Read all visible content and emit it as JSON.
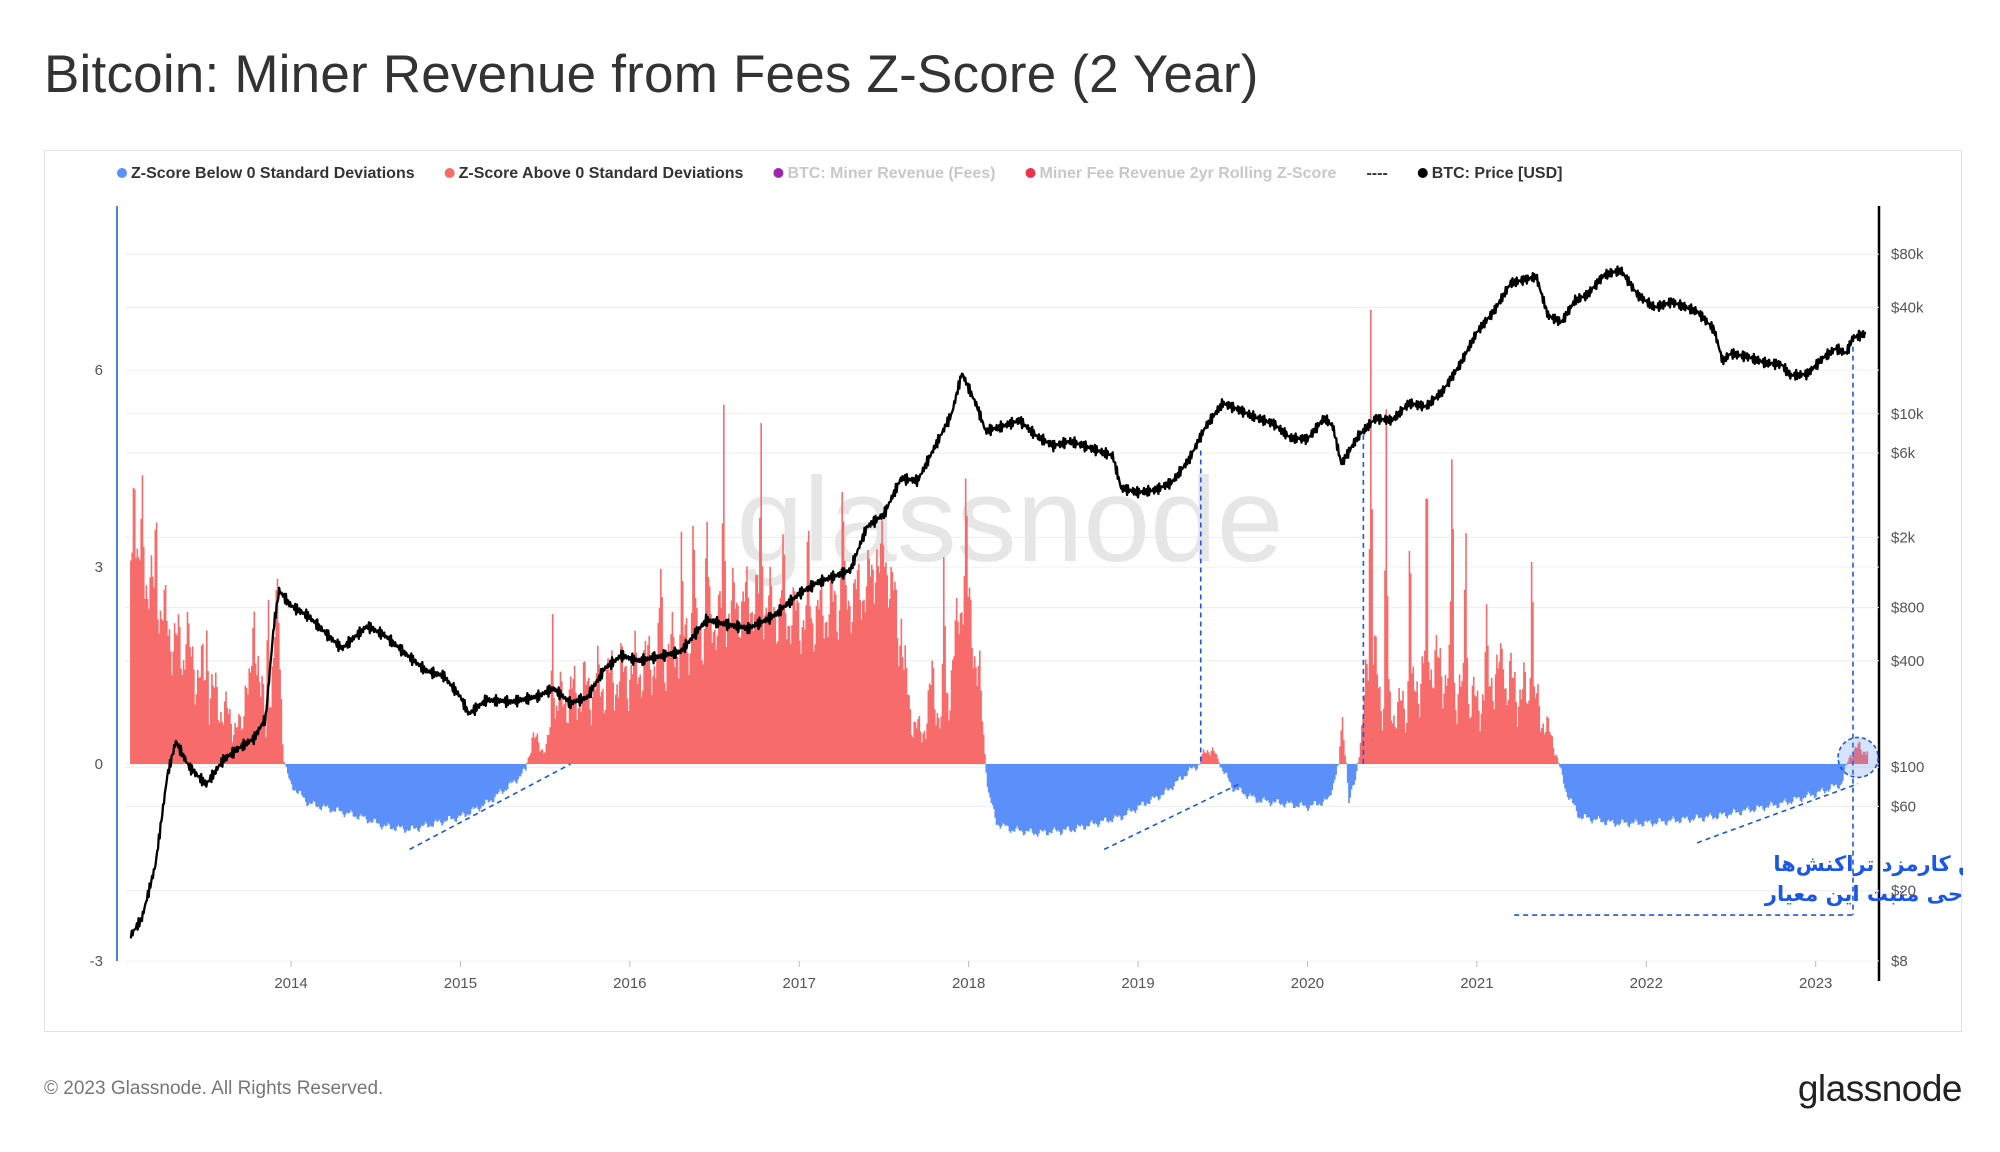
{
  "title": "Bitcoin: Miner Revenue from Fees Z-Score (2 Year)",
  "footer": {
    "copyright": "© 2023 Glassnode. All Rights Reserved.",
    "logo": "glassnode"
  },
  "watermark": "glassnode",
  "colors": {
    "below": "#5b8ff9",
    "above": "#f86b6b",
    "price": "#000000",
    "annotation": "#1a56e8"
  },
  "legend": [
    {
      "label": "Z-Score Below 0 Standard Deviations",
      "color": "#5b8ff9",
      "active": true,
      "marker": "dot"
    },
    {
      "label": "Z-Score Above 0 Standard Deviations",
      "color": "#f86b6b",
      "active": true,
      "marker": "dot"
    },
    {
      "label": "BTC: Miner Revenue (Fees)",
      "color": "#9b27af",
      "active": false,
      "marker": "dot"
    },
    {
      "label": "Miner Fee Revenue 2yr Rolling Z-Score",
      "color": "#f0304f",
      "active": false,
      "marker": "dot"
    },
    {
      "label": "----",
      "color": "#333333",
      "active": true,
      "marker": "none"
    },
    {
      "label": "BTC: Price [USD]",
      "color": "#000000",
      "active": true,
      "marker": "dot"
    }
  ],
  "annotation": {
    "line1": "بالا رفتن کارمزد تراکنش‌ها",
    "line2": "در نواحی مثبت این معیار"
  },
  "chart_data": {
    "type": "area",
    "x_range": [
      2013.02,
      2023.35
    ],
    "x_ticks": [
      "2014",
      "2015",
      "2016",
      "2017",
      "2018",
      "2019",
      "2020",
      "2021",
      "2022",
      "2023"
    ],
    "y_left": {
      "range": [
        -3,
        8.5
      ],
      "ticks": [
        -3,
        0,
        3,
        6
      ],
      "tick_labels": [
        "-3",
        "0",
        "3",
        "6"
      ]
    },
    "y_right": {
      "scale": "log",
      "range": [
        8,
        150000
      ],
      "ticks": [
        8,
        20,
        60,
        100,
        400,
        800,
        2000,
        6000,
        10000,
        40000,
        80000
      ],
      "tick_labels": [
        "$8",
        "$20",
        "$60",
        "$100",
        "$400",
        "$800",
        "$2k",
        "$6k",
        "$10k",
        "$40k",
        "$80k"
      ]
    },
    "zscore": [
      [
        2013.05,
        3.2
      ],
      [
        2013.15,
        2.8
      ],
      [
        2013.3,
        1.9
      ],
      [
        2013.45,
        1.4
      ],
      [
        2013.6,
        0.8
      ],
      [
        2013.7,
        0.5
      ],
      [
        2013.8,
        1.8
      ],
      [
        2013.85,
        0.3
      ],
      [
        2013.92,
        2.5
      ],
      [
        2013.95,
        0.1
      ],
      [
        2013.99,
        -0.3
      ],
      [
        2014.1,
        -0.6
      ],
      [
        2014.25,
        -0.7
      ],
      [
        2014.4,
        -0.8
      ],
      [
        2014.55,
        -0.95
      ],
      [
        2014.7,
        -1.0
      ],
      [
        2014.85,
        -0.9
      ],
      [
        2015.0,
        -0.8
      ],
      [
        2015.15,
        -0.6
      ],
      [
        2015.3,
        -0.3
      ],
      [
        2015.38,
        -0.1
      ],
      [
        2015.42,
        0.4
      ],
      [
        2015.5,
        0.2
      ],
      [
        2015.55,
        0.8
      ],
      [
        2015.6,
        1.0
      ],
      [
        2015.7,
        1.1
      ],
      [
        2015.8,
        1.2
      ],
      [
        2015.9,
        1.3
      ],
      [
        2016.0,
        1.4
      ],
      [
        2016.15,
        1.6
      ],
      [
        2016.3,
        1.8
      ],
      [
        2016.45,
        2.1
      ],
      [
        2016.6,
        2.4
      ],
      [
        2016.75,
        2.5
      ],
      [
        2016.9,
        2.3
      ],
      [
        2017.05,
        2.2
      ],
      [
        2017.2,
        2.4
      ],
      [
        2017.35,
        2.6
      ],
      [
        2017.45,
        2.9
      ],
      [
        2017.5,
        3.2
      ],
      [
        2017.55,
        2.6
      ],
      [
        2017.6,
        1.6
      ],
      [
        2017.65,
        0.8
      ],
      [
        2017.72,
        0.4
      ],
      [
        2017.78,
        1.2
      ],
      [
        2017.84,
        0.6
      ],
      [
        2017.9,
        1.5
      ],
      [
        2017.97,
        2.8
      ],
      [
        2018.02,
        2.0
      ],
      [
        2018.06,
        1.2
      ],
      [
        2018.09,
        0.2
      ],
      [
        2018.11,
        -0.4
      ],
      [
        2018.16,
        -0.9
      ],
      [
        2018.25,
        -1.0
      ],
      [
        2018.4,
        -1.05
      ],
      [
        2018.6,
        -1.0
      ],
      [
        2018.75,
        -0.9
      ],
      [
        2018.9,
        -0.8
      ],
      [
        2019.0,
        -0.65
      ],
      [
        2019.15,
        -0.45
      ],
      [
        2019.3,
        -0.1
      ],
      [
        2019.36,
        0.0
      ],
      [
        2019.38,
        0.15
      ],
      [
        2019.42,
        0.25
      ],
      [
        2019.45,
        0.15
      ],
      [
        2019.48,
        0.0
      ],
      [
        2019.55,
        -0.35
      ],
      [
        2019.7,
        -0.55
      ],
      [
        2019.85,
        -0.6
      ],
      [
        2020.0,
        -0.65
      ],
      [
        2020.12,
        -0.55
      ],
      [
        2020.18,
        0.0
      ],
      [
        2020.2,
        0.7
      ],
      [
        2020.22,
        0.2
      ],
      [
        2020.24,
        -0.6
      ],
      [
        2020.28,
        -0.2
      ],
      [
        2020.32,
        0.5
      ],
      [
        2020.36,
        2.0
      ],
      [
        2020.42,
        1.1
      ],
      [
        2020.5,
        0.8
      ],
      [
        2020.6,
        0.9
      ],
      [
        2020.7,
        1.6
      ],
      [
        2020.8,
        1.4
      ],
      [
        2020.9,
        1.1
      ],
      [
        2021.0,
        0.9
      ],
      [
        2021.1,
        1.4
      ],
      [
        2021.2,
        1.2
      ],
      [
        2021.3,
        1.0
      ],
      [
        2021.35,
        0.9
      ],
      [
        2021.4,
        0.6
      ],
      [
        2021.45,
        0.3
      ],
      [
        2021.48,
        0.0
      ],
      [
        2021.52,
        -0.4
      ],
      [
        2021.6,
        -0.8
      ],
      [
        2021.8,
        -0.9
      ],
      [
        2022.0,
        -0.9
      ],
      [
        2022.2,
        -0.85
      ],
      [
        2022.4,
        -0.8
      ],
      [
        2022.6,
        -0.7
      ],
      [
        2022.8,
        -0.6
      ],
      [
        2023.0,
        -0.45
      ],
      [
        2023.15,
        -0.3
      ],
      [
        2023.18,
        0.0
      ],
      [
        2023.2,
        0.15
      ],
      [
        2023.25,
        0.25
      ],
      [
        2023.3,
        0.2
      ]
    ],
    "spikes": [
      [
        2013.07,
        5.3
      ],
      [
        2013.12,
        4.2
      ],
      [
        2013.2,
        3.9
      ],
      [
        2013.38,
        2.4
      ],
      [
        2013.5,
        2.2
      ],
      [
        2013.73,
        1.8
      ],
      [
        2013.78,
        2.2
      ],
      [
        2013.86,
        3.0
      ],
      [
        2015.54,
        2.5
      ],
      [
        2016.18,
        3.2
      ],
      [
        2016.3,
        3.3
      ],
      [
        2016.37,
        4.3
      ],
      [
        2016.45,
        3.9
      ],
      [
        2016.55,
        5.2
      ],
      [
        2016.77,
        5.0
      ],
      [
        2016.9,
        3.2
      ],
      [
        2017.05,
        3.4
      ],
      [
        2017.25,
        4.5
      ],
      [
        2017.45,
        3.5
      ],
      [
        2017.6,
        2.5
      ],
      [
        2017.85,
        3.3
      ],
      [
        2017.98,
        4.3
      ],
      [
        2020.37,
        7.3
      ],
      [
        2020.46,
        5.5
      ],
      [
        2020.6,
        4.2
      ],
      [
        2020.7,
        4.6
      ],
      [
        2020.85,
        5.5
      ],
      [
        2020.93,
        4.1
      ],
      [
        2021.05,
        2.1
      ],
      [
        2021.15,
        1.9
      ],
      [
        2021.32,
        3.9
      ]
    ],
    "price": [
      [
        2013.05,
        11
      ],
      [
        2013.12,
        14
      ],
      [
        2013.2,
        28
      ],
      [
        2013.27,
        90
      ],
      [
        2013.32,
        140
      ],
      [
        2013.4,
        100
      ],
      [
        2013.5,
        80
      ],
      [
        2013.6,
        110
      ],
      [
        2013.7,
        130
      ],
      [
        2013.78,
        145
      ],
      [
        2013.85,
        190
      ],
      [
        2013.9,
        650
      ],
      [
        2013.93,
        1000
      ],
      [
        2014.0,
        820
      ],
      [
        2014.1,
        720
      ],
      [
        2014.2,
        580
      ],
      [
        2014.3,
        470
      ],
      [
        2014.45,
        630
      ],
      [
        2014.55,
        560
      ],
      [
        2014.7,
        420
      ],
      [
        2014.8,
        350
      ],
      [
        2014.9,
        330
      ],
      [
        2015.0,
        250
      ],
      [
        2015.05,
        200
      ],
      [
        2015.15,
        240
      ],
      [
        2015.3,
        235
      ],
      [
        2015.45,
        250
      ],
      [
        2015.55,
        280
      ],
      [
        2015.65,
        230
      ],
      [
        2015.75,
        250
      ],
      [
        2015.85,
        360
      ],
      [
        2015.95,
        430
      ],
      [
        2016.05,
        400
      ],
      [
        2016.15,
        420
      ],
      [
        2016.3,
        450
      ],
      [
        2016.45,
        680
      ],
      [
        2016.55,
        650
      ],
      [
        2016.7,
        610
      ],
      [
        2016.85,
        720
      ],
      [
        2017.0,
        960
      ],
      [
        2017.1,
        1100
      ],
      [
        2017.2,
        1200
      ],
      [
        2017.3,
        1300
      ],
      [
        2017.4,
        2300
      ],
      [
        2017.5,
        2700
      ],
      [
        2017.6,
        4300
      ],
      [
        2017.7,
        4200
      ],
      [
        2017.8,
        6500
      ],
      [
        2017.9,
        10000
      ],
      [
        2017.96,
        17000
      ],
      [
        2018.0,
        14000
      ],
      [
        2018.05,
        11000
      ],
      [
        2018.1,
        8000
      ],
      [
        2018.2,
        8500
      ],
      [
        2018.3,
        9200
      ],
      [
        2018.4,
        7500
      ],
      [
        2018.5,
        6600
      ],
      [
        2018.6,
        7000
      ],
      [
        2018.7,
        6500
      ],
      [
        2018.85,
        5800
      ],
      [
        2018.9,
        3800
      ],
      [
        2019.0,
        3600
      ],
      [
        2019.1,
        3700
      ],
      [
        2019.2,
        4100
      ],
      [
        2019.3,
        5500
      ],
      [
        2019.4,
        8500
      ],
      [
        2019.5,
        11500
      ],
      [
        2019.6,
        10500
      ],
      [
        2019.7,
        9500
      ],
      [
        2019.8,
        8800
      ],
      [
        2019.9,
        7300
      ],
      [
        2020.0,
        7200
      ],
      [
        2020.1,
        9500
      ],
      [
        2020.15,
        8500
      ],
      [
        2020.2,
        5200
      ],
      [
        2020.3,
        7500
      ],
      [
        2020.4,
        9400
      ],
      [
        2020.5,
        9200
      ],
      [
        2020.6,
        11500
      ],
      [
        2020.7,
        11000
      ],
      [
        2020.8,
        13500
      ],
      [
        2020.9,
        19000
      ],
      [
        2021.0,
        29000
      ],
      [
        2021.1,
        38000
      ],
      [
        2021.2,
        55000
      ],
      [
        2021.3,
        58000
      ],
      [
        2021.35,
        60000
      ],
      [
        2021.42,
        36000
      ],
      [
        2021.5,
        33000
      ],
      [
        2021.58,
        44000
      ],
      [
        2021.65,
        47000
      ],
      [
        2021.75,
        61000
      ],
      [
        2021.85,
        65000
      ],
      [
        2021.95,
        47000
      ],
      [
        2022.05,
        40000
      ],
      [
        2022.15,
        43000
      ],
      [
        2022.3,
        38000
      ],
      [
        2022.4,
        30000
      ],
      [
        2022.45,
        20000
      ],
      [
        2022.5,
        22000
      ],
      [
        2022.6,
        21000
      ],
      [
        2022.7,
        19500
      ],
      [
        2022.8,
        19000
      ],
      [
        2022.85,
        16500
      ],
      [
        2022.95,
        16800
      ],
      [
        2023.05,
        21000
      ],
      [
        2023.12,
        23500
      ],
      [
        2023.18,
        22000
      ],
      [
        2023.22,
        27000
      ],
      [
        2023.3,
        28500
      ]
    ]
  }
}
